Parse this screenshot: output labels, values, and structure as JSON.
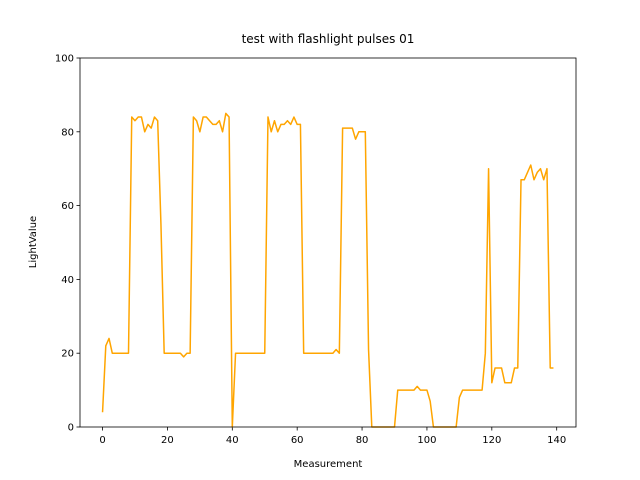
{
  "chart_data": {
    "type": "line",
    "title": "test with flashlight pulses 01",
    "x_label": "Measurement",
    "y_label": "LightValue",
    "color": "#ffa500",
    "x": [
      0,
      1,
      2,
      3,
      4,
      5,
      6,
      7,
      8,
      9,
      10,
      11,
      12,
      13,
      14,
      15,
      16,
      17,
      18,
      19,
      20,
      21,
      22,
      23,
      24,
      25,
      26,
      27,
      28,
      29,
      30,
      31,
      32,
      33,
      34,
      35,
      36,
      37,
      38,
      39,
      40,
      41,
      42,
      43,
      44,
      45,
      46,
      47,
      48,
      49,
      50,
      51,
      52,
      53,
      54,
      55,
      56,
      57,
      58,
      59,
      60,
      61,
      62,
      63,
      64,
      65,
      66,
      67,
      68,
      69,
      70,
      71,
      72,
      73,
      74,
      75,
      76,
      77,
      78,
      79,
      80,
      81,
      82,
      83,
      84,
      85,
      86,
      87,
      88,
      89,
      90,
      91,
      92,
      93,
      94,
      95,
      96,
      97,
      98,
      99,
      100,
      101,
      102,
      103,
      104,
      105,
      106,
      107,
      108,
      109,
      110,
      111,
      112,
      113,
      114,
      115,
      116,
      117,
      118,
      119,
      120,
      121,
      122,
      123,
      124,
      125,
      126,
      127,
      128,
      129,
      130,
      131,
      132,
      133,
      134,
      135,
      136,
      137,
      138,
      139
    ],
    "values": [
      4,
      22,
      24,
      20,
      20,
      20,
      20,
      20,
      20,
      84,
      83,
      84,
      84,
      80,
      82,
      81,
      84,
      83,
      55,
      20,
      20,
      20,
      20,
      20,
      20,
      19,
      20,
      20,
      84,
      83,
      80,
      84,
      84,
      83,
      82,
      82,
      83,
      80,
      85,
      84,
      0,
      20,
      20,
      20,
      20,
      20,
      20,
      20,
      20,
      20,
      20,
      84,
      80,
      83,
      80,
      82,
      82,
      83,
      82,
      84,
      82,
      82,
      20,
      20,
      20,
      20,
      20,
      20,
      20,
      20,
      20,
      20,
      21,
      20,
      81,
      81,
      81,
      81,
      78,
      80,
      80,
      80,
      21,
      0,
      0,
      0,
      0,
      0,
      0,
      0,
      0,
      10,
      10,
      10,
      10,
      10,
      10,
      11,
      10,
      10,
      10,
      7,
      0,
      0,
      0,
      0,
      0,
      0,
      0,
      0,
      8,
      10,
      10,
      10,
      10,
      10,
      10,
      10,
      20,
      70,
      12,
      16,
      16,
      16,
      12,
      12,
      12,
      16,
      16,
      67,
      67,
      69,
      71,
      67,
      69,
      70,
      67,
      70,
      16,
      16
    ],
    "xlim": [
      -6.95,
      145.95
    ],
    "xticks": [
      0,
      20,
      40,
      60,
      80,
      100,
      120,
      140
    ],
    "ylim": [
      0,
      100
    ],
    "yticks": [
      0,
      20,
      40,
      60,
      80,
      100
    ],
    "grid": false
  }
}
